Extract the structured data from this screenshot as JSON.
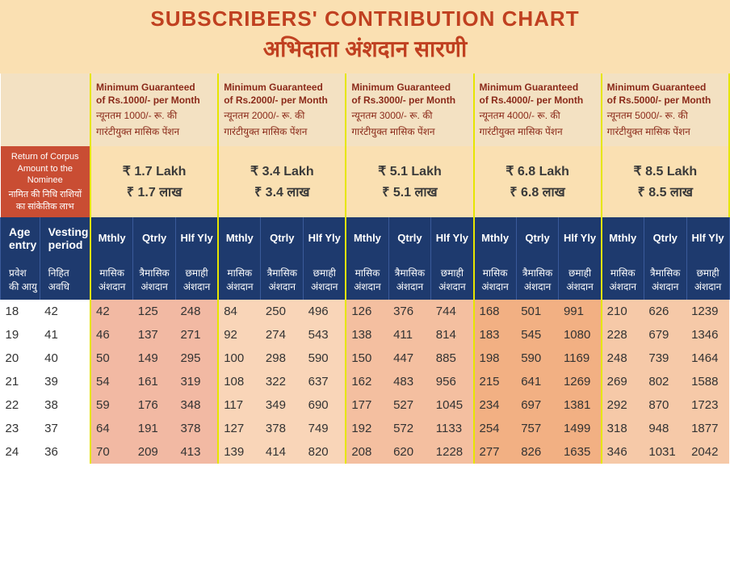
{
  "title_en": "SUBSCRIBERS' CONTRIBUTION CHART",
  "title_hi": "अभिदाता अंशदान सारणी",
  "corpus_label_en": "Return of Corpus Amount to the Nominee",
  "corpus_label_hi": "नामित की निधि राशियों का सांकेतिक लाभ",
  "tiers": [
    {
      "hdr_en1": "Minimum Guaranteed",
      "hdr_en2": "of Rs.1000/- per Month",
      "hdr_hi1": "न्यूनतम 1000/- रू. की",
      "hdr_hi2": "गारंटीयुक्त मासिक पेंशन",
      "corpus_en": "₹ 1.7 Lakh",
      "corpus_hi": "₹ 1.7 लाख"
    },
    {
      "hdr_en1": "Minimum Guaranteed",
      "hdr_en2": "of Rs.2000/- per Month",
      "hdr_hi1": "न्यूनतम 2000/- रू. की",
      "hdr_hi2": "गारंटीयुक्त मासिक पेंशन",
      "corpus_en": "₹ 3.4 Lakh",
      "corpus_hi": "₹ 3.4 लाख"
    },
    {
      "hdr_en1": "Minimum Guaranteed",
      "hdr_en2": "of Rs.3000/- per Month",
      "hdr_hi1": "न्यूनतम 3000/- रू. की",
      "hdr_hi2": "गारंटीयुक्त मासिक पेंशन",
      "corpus_en": "₹ 5.1 Lakh",
      "corpus_hi": "₹ 5.1 लाख"
    },
    {
      "hdr_en1": "Minimum Guaranteed",
      "hdr_en2": "of Rs.4000/- per Month",
      "hdr_hi1": "न्यूनतम 4000/- रू. की",
      "hdr_hi2": "गारंटीयुक्त मासिक पेंशन",
      "corpus_en": "₹ 6.8 Lakh",
      "corpus_hi": "₹ 6.8 लाख"
    },
    {
      "hdr_en1": "Minimum Guaranteed",
      "hdr_en2": "of Rs.5000/- per Month",
      "hdr_hi1": "न्यूनतम 5000/- रू. की",
      "hdr_hi2": "गारंटीयुक्त मासिक पेंशन",
      "corpus_en": "₹ 8.5 Lakh",
      "corpus_hi": "₹ 8.5 लाख"
    }
  ],
  "colhdr_en": {
    "age": "Age entry",
    "vest": "Vesting period",
    "m": "Mthly",
    "q": "Qtrly",
    "h": "Hlf Yly"
  },
  "colhdr_hi": {
    "age": "प्रवेश की आयु",
    "vest": "निहित अवधि",
    "m": "मासिक अंशदान",
    "q": "त्रैमासिक अंशदान",
    "h": "छमाही अंशदान"
  },
  "rows": [
    {
      "age": "18",
      "vest": "42",
      "v": [
        "42",
        "125",
        "248",
        "84",
        "250",
        "496",
        "126",
        "376",
        "744",
        "168",
        "501",
        "991",
        "210",
        "626",
        "1239"
      ]
    },
    {
      "age": "19",
      "vest": "41",
      "v": [
        "46",
        "137",
        "271",
        "92",
        "274",
        "543",
        "138",
        "411",
        "814",
        "183",
        "545",
        "1080",
        "228",
        "679",
        "1346"
      ]
    },
    {
      "age": "20",
      "vest": "40",
      "v": [
        "50",
        "149",
        "295",
        "100",
        "298",
        "590",
        "150",
        "447",
        "885",
        "198",
        "590",
        "1169",
        "248",
        "739",
        "1464"
      ]
    },
    {
      "age": "21",
      "vest": "39",
      "v": [
        "54",
        "161",
        "319",
        "108",
        "322",
        "637",
        "162",
        "483",
        "956",
        "215",
        "641",
        "1269",
        "269",
        "802",
        "1588"
      ]
    },
    {
      "age": "22",
      "vest": "38",
      "v": [
        "59",
        "176",
        "348",
        "117",
        "349",
        "690",
        "177",
        "527",
        "1045",
        "234",
        "697",
        "1381",
        "292",
        "870",
        "1723"
      ]
    },
    {
      "age": "23",
      "vest": "37",
      "v": [
        "64",
        "191",
        "378",
        "127",
        "378",
        "749",
        "192",
        "572",
        "1133",
        "254",
        "757",
        "1499",
        "318",
        "948",
        "1877"
      ]
    },
    {
      "age": "24",
      "vest": "36",
      "v": [
        "70",
        "209",
        "413",
        "139",
        "414",
        "820",
        "208",
        "620",
        "1228",
        "277",
        "826",
        "1635",
        "346",
        "1031",
        "2042"
      ]
    }
  ],
  "colors": {
    "title_bg": "#fae0b2",
    "title_fg": "#c04020",
    "hdr_bg": "#f3e1c2",
    "hdr_fg": "#8b2a1a",
    "corpus_lbl_bg": "#c94d33",
    "navy": "#1e3a6e",
    "c1": "#f2b9a3",
    "c2": "#f9d5b8",
    "c3": "#f4bfa0",
    "c4": "#f2b083",
    "c5": "#f6c9a8",
    "sep": "#e6e600"
  }
}
